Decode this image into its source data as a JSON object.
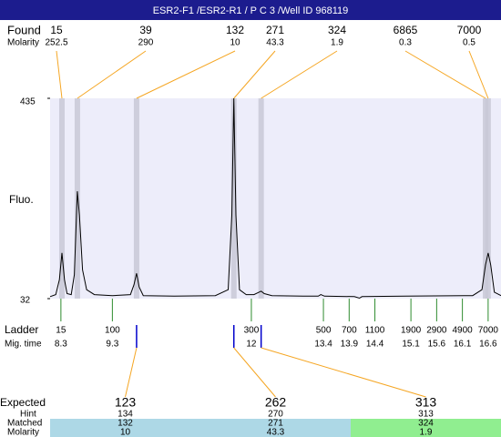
{
  "chart_data": {
    "type": "electropherogram",
    "title": "ESR2-F1 /ESR2-R1 / P C 3 /Well ID 968119",
    "ylabel": "Fluo.",
    "ylim": [
      32,
      435
    ],
    "yticks": [
      32,
      435
    ],
    "xlim": [
      8.09,
      16.85
    ],
    "background": "#ededfa",
    "line_color": "#000000",
    "trace": {
      "x": [
        8.09,
        8.2,
        8.27,
        8.32,
        8.37,
        8.42,
        8.5,
        8.56,
        8.62,
        8.66,
        8.72,
        8.8,
        8.95,
        9.3,
        9.65,
        9.72,
        9.77,
        9.82,
        9.9,
        10.5,
        11.3,
        11.55,
        11.62,
        11.66,
        11.7,
        11.77,
        11.9,
        12.05,
        12.13,
        12.19,
        12.25,
        12.4,
        13.0,
        13.3,
        13.35,
        13.42,
        14.0,
        14.1,
        14.15,
        15.0,
        16.3,
        16.48,
        16.55,
        16.6,
        16.65,
        16.72,
        16.85
      ],
      "y": [
        36,
        40,
        70,
        124,
        70,
        42,
        40,
        80,
        248,
        200,
        90,
        50,
        40,
        38,
        40,
        60,
        83,
        55,
        38,
        37,
        38,
        50,
        200,
        435,
        200,
        50,
        40,
        40,
        44,
        47,
        42,
        38,
        37,
        37,
        40,
        37,
        36,
        33,
        36,
        37,
        38,
        50,
        100,
        124,
        100,
        45,
        38
      ]
    },
    "found": {
      "label": "Found",
      "sizes": [
        15,
        39,
        132,
        271,
        324,
        6865,
        7000
      ],
      "molarity_label": "Molarity",
      "molarity": [
        252.5,
        290,
        10,
        43.3,
        1.9,
        0.3,
        0.5
      ],
      "times": [
        8.32,
        8.62,
        9.77,
        11.66,
        12.19,
        16.55,
        16.6
      ],
      "band_color": "#c8c8d6",
      "link_color": "#f5a623"
    },
    "ladder": {
      "label": "Ladder",
      "sizes": [
        15,
        100,
        300,
        500,
        700,
        1100,
        1900,
        2900,
        4900,
        7000
      ],
      "time_label": "Mig. time",
      "times": [
        8.3,
        9.3,
        12,
        13.4,
        13.9,
        14.4,
        15.1,
        15.6,
        16.1,
        16.6
      ],
      "color": "#2e8b2e"
    },
    "expected": {
      "label": "Expected",
      "sizes": [
        123,
        262,
        313
      ],
      "hint_label": "Hint",
      "hint": [
        134,
        270,
        313
      ],
      "matched_label": "Matched",
      "matched": [
        132,
        271,
        324
      ],
      "molarity_label": "Molarity",
      "molarity": [
        10,
        43.3,
        1.9
      ],
      "matched_colors": [
        "#add8e6",
        "#add8e6",
        "#90ee90"
      ],
      "mark_color": "#0000cc"
    }
  }
}
